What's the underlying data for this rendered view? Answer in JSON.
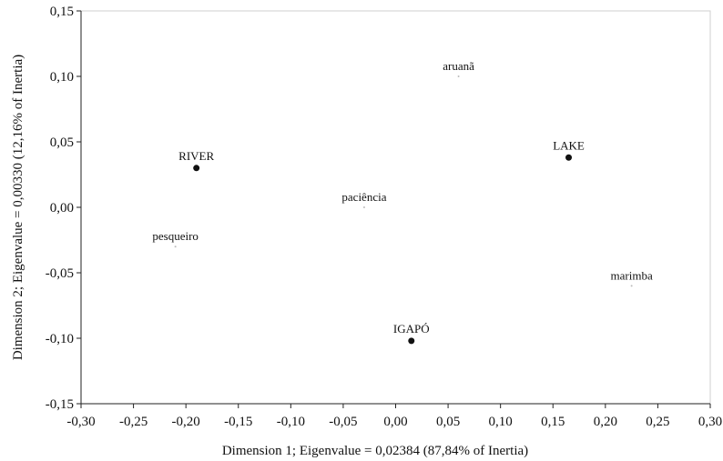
{
  "chart_data": {
    "type": "scatter",
    "title": "",
    "xlabel": "Dimension 1; Eigenvalue = 0,02384 (87,84% of Inertia)",
    "ylabel": "Dimension 2; Eigenvalue = 0,00330 (12,16% of Inertia)",
    "xlim": [
      -0.3,
      0.3
    ],
    "ylim": [
      -0.15,
      0.15
    ],
    "xticks": [
      -0.3,
      -0.25,
      -0.2,
      -0.15,
      -0.1,
      -0.05,
      0.0,
      0.05,
      0.1,
      0.15,
      0.2,
      0.25,
      0.3
    ],
    "xtick_labels": [
      "-0,30",
      "-0,25",
      "-0,20",
      "-0,15",
      "-0,10",
      "-0,05",
      "0,00",
      "0,05",
      "0,10",
      "0,15",
      "0,20",
      "0,25",
      "0,30"
    ],
    "yticks": [
      0.15,
      0.1,
      0.05,
      0.0,
      -0.05,
      -0.1,
      -0.15
    ],
    "ytick_labels": [
      "0,15",
      "0,10",
      "0,05",
      "0,00",
      "-0,05",
      "-0,10",
      "-0,15"
    ],
    "grid": false,
    "series": [
      {
        "marker": "filled-circle",
        "color": "#111111",
        "points": [
          {
            "label": "RIVER",
            "x": -0.19,
            "y": 0.03
          },
          {
            "label": "LAKE",
            "x": 0.165,
            "y": 0.038
          },
          {
            "label": "IGAPÓ",
            "x": 0.015,
            "y": -0.102
          }
        ]
      },
      {
        "marker": "small-dot",
        "color": "#bbbbbb",
        "points": [
          {
            "label": "aruanã",
            "x": 0.06,
            "y": 0.1
          },
          {
            "label": "paciência",
            "x": -0.03,
            "y": 0.0
          },
          {
            "label": "pesqueiro",
            "x": -0.21,
            "y": -0.03
          },
          {
            "label": "marimba",
            "x": 0.225,
            "y": -0.06
          }
        ]
      }
    ]
  }
}
